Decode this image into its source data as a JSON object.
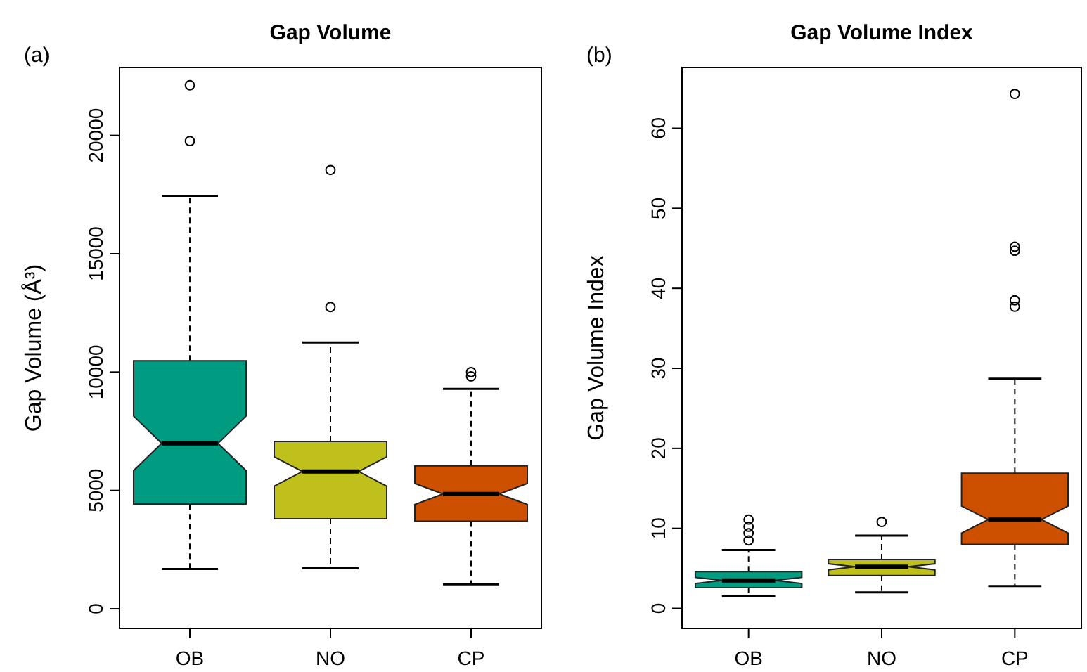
{
  "chart_data": [
    {
      "type": "box",
      "title": "Gap Volume",
      "ylabel": "Gap Volume (Å³)",
      "annotations": [
        "(a)"
      ],
      "categories": [
        "OB",
        "NO",
        "CP"
      ],
      "colors": [
        "#009c81",
        "#bfc01b",
        "#cc5000"
      ],
      "ylim": [
        -830,
        22870
      ],
      "yticks": [
        0,
        5000,
        10000,
        15000,
        20000
      ],
      "boxes": [
        {
          "low": 1680,
          "q1": 4420,
          "median": 6990,
          "q3": 10480,
          "high": 17450,
          "outliers": [
            22120,
            19760
          ]
        },
        {
          "low": 1720,
          "q1": 3800,
          "median": 5800,
          "q3": 7070,
          "high": 11250,
          "outliers": [
            18540,
            12750
          ]
        },
        {
          "low": 1030,
          "q1": 3700,
          "median": 4850,
          "q3": 6040,
          "high": 9290,
          "outliers": [
            10000,
            9820
          ]
        }
      ]
    },
    {
      "type": "box",
      "title": "Gap Volume Index",
      "ylabel": "Gap Volume Index",
      "annotations": [
        "(b)"
      ],
      "categories": [
        "OB",
        "NO",
        "CP"
      ],
      "colors": [
        "#009c81",
        "#bfc01b",
        "#cc5000"
      ],
      "ylim": [
        -2.5,
        67.6
      ],
      "yticks": [
        0,
        10,
        20,
        30,
        40,
        50,
        60
      ],
      "boxes": [
        {
          "low": 1.5,
          "q1": 2.6,
          "median": 3.5,
          "q3": 4.6,
          "high": 7.3,
          "outliers": [
            8.5,
            9.4,
            10.2,
            11.1
          ]
        },
        {
          "low": 2.0,
          "q1": 4.1,
          "median": 5.2,
          "q3": 6.1,
          "high": 9.1,
          "outliers": [
            10.8
          ]
        },
        {
          "low": 2.8,
          "q1": 8.0,
          "median": 11.1,
          "q3": 16.9,
          "high": 28.7,
          "outliers": [
            64.3,
            45.2,
            44.7,
            38.5,
            37.7
          ]
        }
      ]
    }
  ]
}
